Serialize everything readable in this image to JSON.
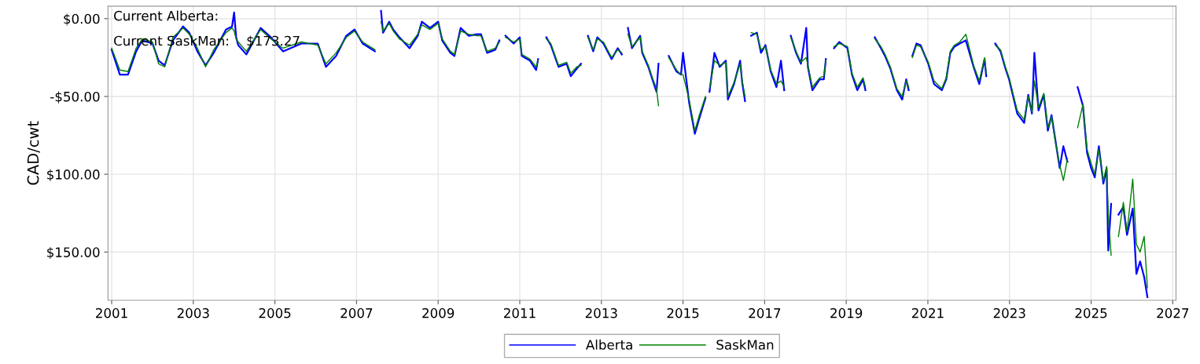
{
  "chart_data": {
    "type": "line",
    "ylabel": "CAD/cwt",
    "annotations": [
      "Current Alberta:",
      "Current SaskMan:    $173.27"
    ],
    "x": [
      2001.0,
      2001.2,
      2001.4,
      2001.6,
      2001.75,
      2002.0,
      2002.15,
      2002.3,
      2002.5,
      2002.75,
      2002.9,
      2003.1,
      2003.3,
      2003.5,
      2003.8,
      2003.95,
      2004.0,
      2004.05,
      2004.1,
      2004.3,
      2004.65,
      2004.9,
      2005.2,
      2005.65,
      2006.05,
      2006.25,
      2006.5,
      2006.75,
      2006.95,
      2007.15,
      2007.45,
      2007.52,
      2007.6,
      2007.65,
      2007.8,
      2007.9,
      2008.05,
      2008.3,
      2008.5,
      2008.6,
      2008.8,
      2009.0,
      2009.1,
      2009.3,
      2009.4,
      2009.55,
      2009.75,
      2009.95,
      2010.05,
      2010.2,
      2010.4,
      2010.5,
      2010.57,
      2010.65,
      2010.85,
      2011.0,
      2011.05,
      2011.25,
      2011.4,
      2011.45,
      2011.55,
      2011.65,
      2011.76,
      2011.95,
      2012.15,
      2012.25,
      2012.4,
      2012.5,
      2012.58,
      2012.67,
      2012.8,
      2012.9,
      2013.05,
      2013.25,
      2013.4,
      2013.5,
      2013.57,
      2013.65,
      2013.75,
      2013.95,
      2014.0,
      2014.15,
      2014.25,
      2014.35,
      2014.4,
      2014.5,
      2014.65,
      2014.84,
      2014.95,
      2015.0,
      2015.15,
      2015.29,
      2015.4,
      2015.55,
      2015.6,
      2015.65,
      2015.77,
      2015.9,
      2016.05,
      2016.1,
      2016.25,
      2016.4,
      2016.45,
      2016.52,
      2016.6,
      2016.67,
      2016.81,
      2016.91,
      2017.02,
      2017.15,
      2017.29,
      2017.4,
      2017.48,
      2017.56,
      2017.64,
      2017.77,
      2017.89,
      2018.02,
      2018.06,
      2018.17,
      2018.35,
      2018.45,
      2018.5,
      2018.6,
      2018.7,
      2018.83,
      2019.03,
      2019.14,
      2019.27,
      2019.41,
      2019.47,
      2019.58,
      2019.7,
      2019.85,
      2019.95,
      2020.08,
      2020.24,
      2020.37,
      2020.47,
      2020.53,
      2020.57,
      2020.62,
      2020.72,
      2020.82,
      2021.01,
      2021.15,
      2021.34,
      2021.45,
      2021.55,
      2021.65,
      2021.78,
      2021.93,
      2022.12,
      2022.26,
      2022.39,
      2022.43,
      2022.55,
      2022.65,
      2022.78,
      2022.9,
      2022.99,
      2023.19,
      2023.36,
      2023.46,
      2023.55,
      2023.61,
      2023.71,
      2023.84,
      2023.94,
      2024.03,
      2024.13,
      2024.23,
      2024.32,
      2024.42,
      2024.55,
      2024.67,
      2024.8,
      2024.9,
      2025.0,
      2025.09,
      2025.19,
      2025.3,
      2025.38,
      2025.42,
      2025.49,
      2025.58,
      2025.67,
      2025.79,
      2025.88,
      2026.02,
      2026.11,
      2026.2,
      2026.3,
      2026.38
    ],
    "series": [
      {
        "name": "Alberta",
        "color": "#0000ff",
        "values": [
          -20,
          -36,
          -36,
          -21,
          -14,
          -16,
          -27,
          -30,
          -14,
          -5,
          -9,
          -21,
          -30,
          -22,
          -7,
          -5,
          4,
          -12,
          -17,
          -23,
          -6,
          -12,
          -21,
          -16,
          -16,
          -31,
          -24,
          -11,
          -7,
          -16,
          -21,
          null,
          5,
          -9,
          -2,
          -7,
          -12,
          -19,
          -11,
          -2,
          -6,
          -2,
          -14,
          -22,
          -24,
          -6,
          -11,
          -10,
          -10,
          -22,
          -20,
          -14,
          null,
          -11,
          -16,
          -12,
          -24,
          -27,
          -33,
          -26,
          null,
          -12,
          -17,
          -31,
          -29,
          -37,
          -32,
          -29,
          null,
          -11,
          -21,
          -12,
          -16,
          -26,
          -19,
          -23,
          null,
          -6,
          -19,
          -11,
          -22,
          -31,
          -39,
          -47,
          -29,
          null,
          -24,
          -34,
          -36,
          -22,
          -54,
          -74,
          -64,
          -51,
          null,
          -47,
          -22,
          -31,
          -27,
          -52,
          -42,
          -27,
          -41,
          -53,
          null,
          -11,
          -9,
          -22,
          -17,
          -34,
          -44,
          -27,
          -46,
          null,
          -11,
          -22,
          -29,
          -6,
          -31,
          -46,
          -39,
          -39,
          -26,
          null,
          -19,
          -15,
          -19,
          -36,
          -46,
          -39,
          -46,
          null,
          -12,
          -19,
          -24,
          -32,
          -46,
          -52,
          -39,
          -46,
          null,
          -24,
          -16,
          -17,
          -29,
          -42,
          -46,
          -39,
          -22,
          -18,
          -16,
          -14,
          -31,
          -42,
          -26,
          -37,
          null,
          -16,
          -21,
          -32,
          -39,
          -61,
          -67,
          -49,
          -61,
          -22,
          -59,
          -49,
          -72,
          -62,
          -79,
          -96,
          -82,
          -92,
          null,
          -44,
          -56,
          -86,
          -96,
          -102,
          -82,
          -106,
          -96,
          -149,
          -119,
          null,
          -126,
          -121,
          -139,
          -122,
          -164,
          -156,
          -166,
          -179
        ]
      },
      {
        "name": "SaskMan",
        "color": "#008000",
        "values": [
          -19,
          -33,
          -34,
          -19,
          -13,
          -15,
          -29,
          -31,
          -12,
          -6,
          -10,
          -19,
          -31,
          -20,
          -9,
          -6,
          -8,
          -13,
          -15,
          -21,
          -7,
          -13,
          -19,
          -15,
          -17,
          -29,
          -22,
          -12,
          -8,
          -15,
          -20,
          null,
          -2,
          -8,
          -3,
          -8,
          -13,
          -17,
          -10,
          -4,
          -7,
          -3,
          -13,
          -21,
          -23,
          -8,
          -10,
          -11,
          -11,
          -21,
          -19,
          -15,
          null,
          -12,
          -15,
          -13,
          -23,
          -26,
          -31,
          -27,
          null,
          -13,
          -16,
          -30,
          -28,
          -35,
          -31,
          -30,
          null,
          -12,
          -20,
          -13,
          -15,
          -25,
          -20,
          -22,
          null,
          -10,
          -18,
          -12,
          -21,
          -30,
          -38,
          -45,
          -56,
          null,
          -25,
          -33,
          -36,
          -36,
          -52,
          -72,
          -62,
          -50,
          null,
          -45,
          -27,
          -30,
          -28,
          -50,
          -41,
          -29,
          -40,
          -50,
          null,
          -9,
          -10,
          -20,
          -18,
          -33,
          -42,
          -40,
          -44,
          null,
          -12,
          -21,
          -28,
          -25,
          -30,
          -44,
          -38,
          -37,
          -27,
          null,
          -18,
          -16,
          -18,
          -35,
          -44,
          -38,
          -44,
          null,
          -13,
          -18,
          -23,
          -31,
          -45,
          -50,
          -40,
          -44,
          null,
          -25,
          -17,
          -18,
          -28,
          -40,
          -45,
          -38,
          -21,
          -17,
          -15,
          -10,
          -30,
          -40,
          -25,
          -35,
          null,
          -17,
          -20,
          -31,
          -38,
          -59,
          -65,
          -50,
          -60,
          -40,
          -57,
          -48,
          -70,
          -63,
          -80,
          -94,
          -104,
          -90,
          null,
          -70,
          -55,
          -84,
          -93,
          -100,
          -84,
          -104,
          -95,
          -125,
          -152,
          null,
          -140,
          -118,
          -137,
          -103,
          -145,
          -150,
          -140,
          -173
        ]
      }
    ],
    "xlim": [
      2000.91,
      2027.08
    ],
    "xticks": [
      2001,
      2003,
      2005,
      2007,
      2009,
      2011,
      2013,
      2015,
      2017,
      2019,
      2021,
      2023,
      2025,
      2027
    ],
    "ylim": [
      -181,
      8
    ],
    "yticks": [
      {
        "value": 0,
        "label": "$0.00"
      },
      {
        "value": -50,
        "label": "-$50.00"
      },
      {
        "value": -100,
        "label": "$100.00"
      },
      {
        "value": -150,
        "label": "$150.00"
      }
    ],
    "grid": true,
    "legend": "bottom",
    "line_style": "solid",
    "marker": "none"
  }
}
